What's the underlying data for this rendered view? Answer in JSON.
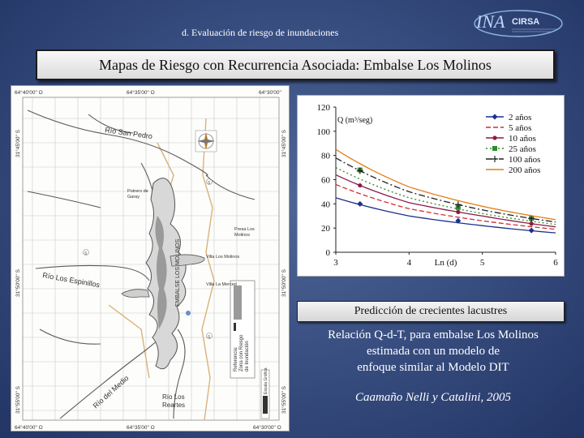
{
  "slide": {
    "section": "d.   Evaluación de riesgo de inundaciones",
    "title": "Mapas de Riesgo con Recurrencia Asociada: Embalse  Los Molinos",
    "subtitle_box": "Predicción de crecientes lacustres",
    "description": [
      "Relación Q-d-T, para  embalse  Los Molinos",
      "estimada con un modelo de",
      "enfoque similar al Modelo DIT"
    ],
    "citation": "Caamaño Nelli y  Catalini, 2005"
  },
  "logo": {
    "text": "INA",
    "text2": "CIRSA",
    "icon": "ina-cirsa-logo"
  },
  "map": {
    "coords": {
      "top_left": "64°40'00\" O",
      "top_mid": "64°35'00\" O",
      "top_right": "64°30'00\"",
      "bottom_left": "64°40'00\" O",
      "bottom_mid": "64°35'00\" O",
      "bottom_right": "64°30'00\" O",
      "left_1": "31°45'00\" S",
      "left_2": "31°50'00\" S",
      "left_3": "31°55'00\" S",
      "right_1": "31°45'00\" S",
      "right_2": "31°50'00\" S",
      "right_3": "31°55'00\" S"
    },
    "labels": {
      "rio_san_pedro": "Río San Pedro",
      "potrero": [
        "Potrero de",
        "Garay"
      ],
      "presa": [
        "Presa Los",
        "Molinos"
      ],
      "villa_molinos": "Villa Los Molinos",
      "villa_merced": "Villa La Merced",
      "embalse": "EMBALSE LOS MOLINOS",
      "rio_espinillos": "Río Los Espinillos",
      "rio_medio": "Río del Medio",
      "rio_reartes": [
        "Río Los",
        "Reartes"
      ],
      "referencia": [
        "Referencia:",
        "Zona con Riesgo",
        "de Inundación"
      ],
      "escala": "Escala Gráfica",
      "marker_a": "S",
      "marker_b": "S",
      "marker_c": "S"
    },
    "compass_icon": "compass-rose-icon"
  },
  "chart_data": {
    "type": "line",
    "ylabel": "Q (m³/seg)",
    "xlabel": "Ln (d)",
    "xlim": [
      3,
      6
    ],
    "ylim": [
      0,
      120
    ],
    "xticks": [
      3,
      4,
      5,
      6
    ],
    "yticks": [
      0,
      20,
      40,
      60,
      80,
      100,
      120
    ],
    "x": [
      3,
      4,
      5,
      6
    ],
    "legend_position": "top-right",
    "series": [
      {
        "name": "2 años",
        "color": "#1c2f8c",
        "marker": "diamond",
        "dash": "",
        "values": [
          45,
          30,
          22,
          16
        ],
        "marker_x": [
          3.33,
          4.67,
          5.67
        ],
        "marker_y": [
          40,
          26,
          18
        ]
      },
      {
        "name": "5 años",
        "color": "#d42e2e",
        "marker": "",
        "dash": "6,3",
        "values": [
          56,
          36,
          26,
          19
        ]
      },
      {
        "name": "10 años",
        "color": "#8b1a4a",
        "marker": "circle",
        "dash": "",
        "values": [
          64,
          41,
          30,
          21
        ]
      },
      {
        "name": "25 años",
        "color": "#2e8b2e",
        "marker": "square",
        "dash": "2,3",
        "values": [
          70,
          45,
          32,
          23
        ],
        "marker_x": [
          3.33,
          4.67,
          5.67
        ],
        "marker_y": [
          68,
          37,
          28
        ]
      },
      {
        "name": "100 años",
        "color": "#222222",
        "marker": "plus",
        "dash": "8,3,2,3",
        "values": [
          78,
          50,
          35,
          25
        ]
      },
      {
        "name": "200 años",
        "color": "#e07f1a",
        "marker": "",
        "dash": "",
        "values": [
          85,
          54,
          38,
          27
        ]
      }
    ]
  }
}
